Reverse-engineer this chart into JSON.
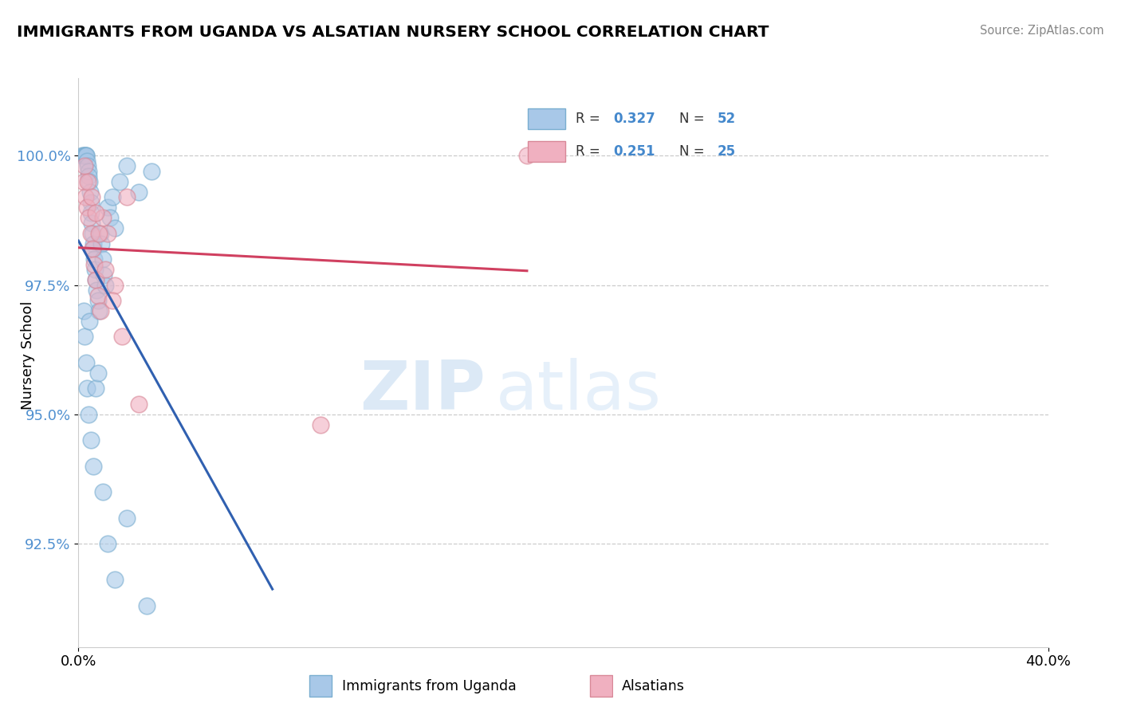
{
  "title": "IMMIGRANTS FROM UGANDA VS ALSATIAN NURSERY SCHOOL CORRELATION CHART",
  "source": "Source: ZipAtlas.com",
  "ylabel": "Nursery School",
  "xlim": [
    0.0,
    40.0
  ],
  "ylim": [
    90.5,
    101.5
  ],
  "y_ticks": [
    92.5,
    95.0,
    97.5,
    100.0
  ],
  "legend_r1": "0.327",
  "legend_n1": "52",
  "legend_r2": "0.251",
  "legend_n2": "25",
  "watermark_zip": "ZIP",
  "watermark_atlas": "atlas",
  "blue_color": "#a8c8e8",
  "blue_edge": "#7aaed0",
  "pink_color": "#f0b0c0",
  "pink_edge": "#d88898",
  "blue_line": "#3060b0",
  "pink_line": "#d04060",
  "blue_x": [
    0.15,
    0.2,
    0.25,
    0.28,
    0.3,
    0.32,
    0.35,
    0.38,
    0.4,
    0.42,
    0.45,
    0.48,
    0.5,
    0.52,
    0.55,
    0.58,
    0.6,
    0.62,
    0.65,
    0.68,
    0.7,
    0.75,
    0.8,
    0.85,
    0.9,
    0.95,
    1.0,
    1.05,
    1.1,
    1.2,
    1.3,
    1.4,
    1.5,
    1.7,
    2.0,
    2.5,
    3.0,
    0.2,
    0.25,
    0.3,
    0.35,
    0.4,
    0.5,
    0.6,
    0.7,
    0.8,
    1.0,
    1.2,
    1.5,
    2.0,
    2.8,
    0.45
  ],
  "blue_y": [
    100.0,
    100.0,
    100.0,
    100.0,
    100.0,
    100.0,
    99.9,
    99.8,
    99.7,
    99.6,
    99.5,
    99.3,
    99.1,
    98.9,
    98.7,
    98.5,
    98.3,
    98.2,
    98.0,
    97.8,
    97.6,
    97.4,
    97.2,
    97.0,
    98.5,
    98.3,
    98.0,
    97.7,
    97.5,
    99.0,
    98.8,
    99.2,
    98.6,
    99.5,
    99.8,
    99.3,
    99.7,
    97.0,
    96.5,
    96.0,
    95.5,
    95.0,
    94.5,
    94.0,
    95.5,
    95.8,
    93.5,
    92.5,
    91.8,
    93.0,
    91.3,
    96.8
  ],
  "pink_x": [
    0.2,
    0.28,
    0.35,
    0.42,
    0.5,
    0.58,
    0.65,
    0.72,
    0.8,
    0.9,
    1.0,
    1.2,
    1.5,
    2.0,
    0.25,
    0.38,
    0.55,
    0.7,
    0.85,
    1.1,
    1.4,
    1.8,
    2.5,
    10.0,
    18.5
  ],
  "pink_y": [
    99.5,
    99.2,
    99.0,
    98.8,
    98.5,
    98.2,
    97.9,
    97.6,
    97.3,
    97.0,
    98.8,
    98.5,
    97.5,
    99.2,
    99.8,
    99.5,
    99.2,
    98.9,
    98.5,
    97.8,
    97.2,
    96.5,
    95.2,
    94.8,
    100.0
  ]
}
